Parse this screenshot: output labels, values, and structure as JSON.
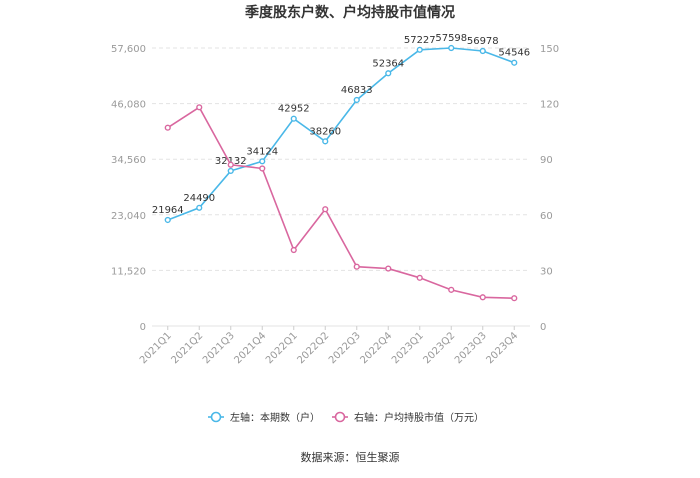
{
  "chart_data": {
    "type": "line",
    "title": "季度股东户数、户均持股市值情况",
    "categories": [
      "2021Q1",
      "2021Q2",
      "2021Q3",
      "2021Q4",
      "2022Q1",
      "2022Q2",
      "2022Q3",
      "2022Q4",
      "2023Q1",
      "2023Q2",
      "2023Q3",
      "2023Q4"
    ],
    "left_axis": {
      "ticks": [
        "0",
        "11,520",
        "23,040",
        "34,560",
        "46,080",
        "57,600"
      ],
      "ylim": [
        0,
        57600
      ]
    },
    "right_axis": {
      "ticks": [
        "0",
        "30",
        "60",
        "90",
        "120",
        "150"
      ],
      "ylim": [
        0,
        150
      ]
    },
    "series": [
      {
        "name": "左轴：本期数（户）",
        "axis": "left",
        "color": "#4ab8e8",
        "values": [
          21964,
          24490,
          32132,
          34124,
          42952,
          38260,
          46833,
          52364,
          57227,
          57598,
          56978,
          54546
        ],
        "labels": [
          "21964",
          "24490",
          "32132",
          "34124",
          "42952",
          "38260",
          "46833",
          "52364",
          "57227",
          "57598",
          "56978",
          "54546"
        ]
      },
      {
        "name": "右轴：户均持股市值（万元）",
        "axis": "right",
        "color": "#d9679f",
        "values": [
          107,
          118,
          87,
          85,
          41,
          63,
          32,
          31,
          26,
          19.5,
          15.5,
          15
        ]
      }
    ],
    "grid": true,
    "legend_position": "bottom"
  },
  "footer": {
    "source": "数据来源：恒生聚源"
  }
}
